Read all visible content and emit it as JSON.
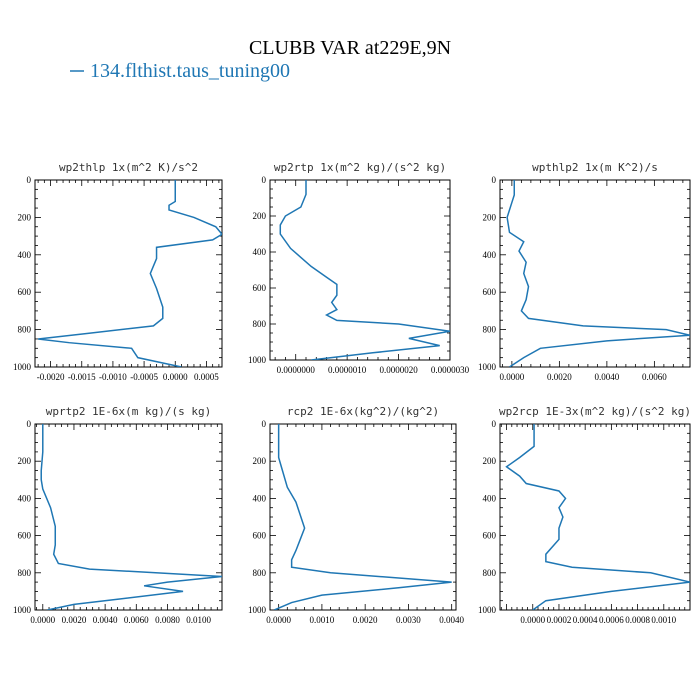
{
  "title": "CLUBB VAR at229E,9N",
  "legend": {
    "label": "134.flthist.taus_tuning00",
    "color": "#1f77b4"
  },
  "series_color": "#1f77b4",
  "chart_data": [
    {
      "type": "line",
      "title": "wp2thlp  1x(m^2 K)/s^2",
      "xlim": [
        -0.00225,
        0.00075
      ],
      "ylim": [
        1000,
        0
      ],
      "xticks": [
        -0.002,
        -0.0015,
        -0.001,
        -0.0005,
        0.0,
        0.0005
      ],
      "xtick_labels": [
        "-0.0020",
        "-0.0015",
        "-0.0010",
        "-0.0005",
        "0.0000",
        "0.0005"
      ],
      "yticks": [
        0,
        200,
        400,
        600,
        800,
        1000
      ],
      "ytick_labels": [
        "0",
        "200",
        "400",
        "600",
        "800",
        "1000"
      ],
      "series": [
        {
          "x": [
            0.0,
            0.0,
            -0.0001,
            -0.0001,
            0.0003,
            0.00065,
            0.00075,
            0.0006,
            -0.0003,
            -0.0003,
            -0.0004,
            -0.0003,
            -0.0002,
            -0.0002,
            -0.00035,
            -0.0014,
            -0.0022,
            -0.0017,
            -0.0007,
            -0.0006,
            0.0001
          ],
          "y": [
            0,
            115,
            135,
            160,
            200,
            250,
            290,
            320,
            360,
            420,
            500,
            580,
            680,
            740,
            780,
            820,
            850,
            870,
            900,
            950,
            1000
          ]
        }
      ]
    },
    {
      "type": "line",
      "title": "wp2rtp  1x(m^2 kg)/(s^2 kg)",
      "xlim": [
        -5e-07,
        3e-06
      ],
      "ylim": [
        1000,
        0
      ],
      "xticks": [
        0.0,
        1e-06,
        2e-06,
        3e-06
      ],
      "xtick_labels": [
        "0.0000000",
        "0.0000010",
        "0.0000020",
        "0.0000030"
      ],
      "yticks": [
        0,
        200,
        400,
        600,
        800,
        1000
      ],
      "ytick_labels": [
        "0",
        "200",
        "400",
        "600",
        "800",
        "1000"
      ],
      "series": [
        {
          "x": [
            2e-07,
            2e-07,
            1e-07,
            -2e-07,
            -3e-07,
            -3e-07,
            -1e-07,
            1e-07,
            3e-07,
            6e-07,
            8e-07,
            8e-07,
            7e-07,
            8e-07,
            6e-07,
            8e-07,
            2e-06,
            3e-06,
            2.2e-06,
            2.8e-06,
            1.5e-06,
            3e-07
          ],
          "y": [
            0,
            80,
            150,
            200,
            250,
            300,
            380,
            430,
            480,
            540,
            580,
            640,
            680,
            720,
            750,
            780,
            800,
            840,
            880,
            920,
            960,
            1000
          ]
        }
      ]
    },
    {
      "type": "line",
      "title": "wpthlp2  1x(m K^2)/s",
      "xlim": [
        -0.0005,
        0.0075
      ],
      "ylim": [
        1000,
        0
      ],
      "xticks": [
        0.0,
        0.002,
        0.004,
        0.006
      ],
      "xtick_labels": [
        "0.0000",
        "0.0020",
        "0.0040",
        "0.0060"
      ],
      "yticks": [
        0,
        200,
        400,
        600,
        800,
        1000
      ],
      "ytick_labels": [
        "0",
        "200",
        "400",
        "600",
        "800",
        "1000"
      ],
      "series": [
        {
          "x": [
            0.0001,
            0.0001,
            0.0,
            -0.0002,
            -0.0001,
            0.0005,
            0.0003,
            0.0006,
            0.0005,
            0.0007,
            0.0006,
            0.0004,
            0.0007,
            0.003,
            0.0065,
            0.0075,
            0.004,
            0.0012,
            0.0005,
            -0.0001
          ],
          "y": [
            0,
            80,
            120,
            200,
            280,
            330,
            380,
            440,
            500,
            570,
            640,
            700,
            740,
            780,
            800,
            830,
            860,
            900,
            950,
            1000
          ]
        }
      ]
    },
    {
      "type": "line",
      "title": "wprtp2  1E-6x(m kg)/(s kg)",
      "xlim": [
        -0.0005,
        0.0115
      ],
      "ylim": [
        1000,
        0
      ],
      "xticks": [
        0.0,
        0.002,
        0.004,
        0.006,
        0.008,
        0.01
      ],
      "xtick_labels": [
        "0.0000",
        "0.0020",
        "0.0040",
        "0.0060",
        "0.0080",
        "0.0100"
      ],
      "yticks": [
        0,
        200,
        400,
        600,
        800,
        1000
      ],
      "ytick_labels": [
        "0",
        "200",
        "400",
        "600",
        "800",
        "1000"
      ],
      "series": [
        {
          "x": [
            0.0,
            0.0,
            -0.0001,
            -0.0001,
            0.0,
            0.0005,
            0.0008,
            0.0008,
            0.0007,
            0.001,
            0.003,
            0.0115,
            0.008,
            0.0065,
            0.009,
            0.005,
            0.002,
            0.0003
          ],
          "y": [
            0,
            150,
            250,
            300,
            350,
            450,
            550,
            650,
            700,
            750,
            780,
            820,
            850,
            870,
            900,
            940,
            970,
            1000
          ]
        }
      ]
    },
    {
      "type": "line",
      "title": "rcp2  1E-6x(kg^2)/(kg^2)",
      "xlim": [
        -0.0002,
        0.0041
      ],
      "ylim": [
        1000,
        0
      ],
      "xticks": [
        0.0,
        0.001,
        0.002,
        0.003,
        0.004
      ],
      "xtick_labels": [
        "0.0000",
        "0.0010",
        "0.0020",
        "0.0030",
        "0.0040"
      ],
      "yticks": [
        0,
        200,
        400,
        600,
        800,
        1000
      ],
      "ytick_labels": [
        "0",
        "200",
        "400",
        "600",
        "800",
        "1000"
      ],
      "series": [
        {
          "x": [
            0.0,
            0.0,
            0.0,
            0.0001,
            0.0002,
            0.0004,
            0.0005,
            0.0006,
            0.0005,
            0.0004,
            0.0003,
            0.0003,
            0.0012,
            0.004,
            0.0028,
            0.001,
            0.0003,
            -0.0001
          ],
          "y": [
            0,
            120,
            180,
            260,
            340,
            420,
            490,
            560,
            620,
            680,
            730,
            770,
            800,
            850,
            880,
            920,
            960,
            1000
          ]
        }
      ]
    },
    {
      "type": "line",
      "title": "wp2rcp  1E-3x(m^2 kg)/(s^2 kg)",
      "xlim": [
        -0.00025,
        0.0012
      ],
      "ylim": [
        1000,
        0
      ],
      "xticks": [
        0.0,
        0.0002,
        0.0004,
        0.0006,
        0.0008,
        0.001
      ],
      "xtick_labels": [
        "0.0000",
        "0.0002",
        "0.0004",
        "0.0006",
        "0.0008",
        "0.0010"
      ],
      "yticks": [
        0,
        200,
        400,
        600,
        800,
        1000
      ],
      "ytick_labels": [
        "0",
        "200",
        "400",
        "600",
        "800",
        "1000"
      ],
      "series": [
        {
          "x": [
            1e-05,
            1e-05,
            -0.0001,
            -0.0002,
            -0.0001,
            -5e-05,
            0.0002,
            0.00025,
            0.0002,
            0.00023,
            0.0002,
            0.0002,
            0.0001,
            0.0001,
            0.0003,
            0.0009,
            0.0012,
            0.0006,
            0.0001,
            0.0
          ],
          "y": [
            0,
            120,
            180,
            230,
            280,
            320,
            360,
            400,
            450,
            500,
            560,
            620,
            700,
            740,
            770,
            800,
            850,
            900,
            950,
            1000
          ]
        }
      ]
    }
  ]
}
